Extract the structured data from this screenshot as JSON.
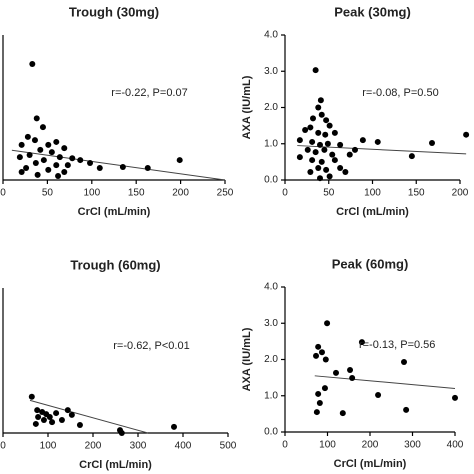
{
  "chart_data": [
    {
      "type": "scatter",
      "title": "Trough (30mg)",
      "x_label": "CrCl (mL/min)",
      "annotation": "r=-0.22, P=0.07",
      "color": "#000000",
      "x": [
        33,
        38,
        45,
        28,
        21,
        36,
        51,
        60,
        69,
        42,
        55,
        30,
        19,
        64,
        78,
        87,
        46,
        37,
        60,
        73,
        98,
        26,
        51,
        69,
        109,
        135,
        163,
        199,
        39,
        62,
        21
      ],
      "values": [
        3.2,
        1.7,
        1.46,
        1.19,
        0.97,
        1.1,
        0.97,
        1.05,
        0.88,
        0.83,
        0.77,
        0.69,
        0.63,
        0.63,
        0.6,
        0.55,
        0.55,
        0.47,
        0.41,
        0.41,
        0.47,
        0.33,
        0.28,
        0.22,
        0.33,
        0.36,
        0.33,
        0.55,
        0.14,
        0.11,
        0.22
      ],
      "fit": {
        "x": [
          10,
          250
        ],
        "y": [
          0.82,
          0.0
        ]
      },
      "xlim": [
        0,
        250
      ],
      "ylim": [
        0,
        4
      ],
      "xticks": [
        0,
        50,
        100,
        150,
        200,
        250
      ]
    },
    {
      "type": "scatter",
      "title": "Peak (30mg)",
      "x_label": "CrCl (mL/min)",
      "y_label": "AXA (IU/mL)",
      "annotation": "r=-0.08, P=0.50",
      "color": "#000000",
      "x": [
        35,
        41,
        38,
        42,
        32,
        47,
        29,
        51,
        23,
        38,
        46,
        57,
        17,
        31,
        40,
        49,
        63,
        26,
        35,
        45,
        54,
        17,
        31,
        42,
        57,
        38,
        47,
        29,
        63,
        51,
        69,
        40,
        74,
        89,
        106,
        80,
        145,
        168,
        207
      ],
      "values": [
        3.03,
        2.2,
        2.0,
        1.8,
        1.7,
        1.65,
        1.45,
        1.5,
        1.38,
        1.3,
        1.25,
        1.3,
        1.1,
        1.05,
        0.97,
        1.0,
        0.97,
        0.83,
        0.77,
        0.83,
        0.7,
        0.63,
        0.55,
        0.5,
        0.55,
        0.33,
        0.28,
        0.22,
        0.33,
        0.1,
        0.22,
        0.05,
        0.7,
        1.1,
        1.05,
        0.83,
        0.66,
        1.02,
        1.25
      ],
      "fit": {
        "x": [
          14,
          207
        ],
        "y": [
          0.95,
          0.72
        ]
      },
      "xlim": [
        0,
        200
      ],
      "ylim": [
        0,
        4
      ],
      "xticks": [
        0,
        50,
        100,
        150,
        200
      ],
      "yticks": [
        {
          "value": 0,
          "label": "0.0"
        },
        {
          "value": 1,
          "label": "1.0"
        },
        {
          "value": 2,
          "label": "2.0"
        },
        {
          "value": 3,
          "label": "3.0"
        },
        {
          "value": 4,
          "label": "4.0"
        }
      ]
    },
    {
      "type": "scatter",
      "title": "Trough (60mg)",
      "x_label": "CrCl (mL/min)",
      "annotation": "r=-0.62, P<0.01",
      "color": "#000000",
      "x": [
        64,
        76,
        87,
        96,
        78,
        104,
        118,
        144,
        153,
        131,
        91,
        109,
        73,
        171,
        260,
        264,
        380
      ],
      "values": [
        1.0,
        0.63,
        0.58,
        0.52,
        0.44,
        0.44,
        0.55,
        0.63,
        0.5,
        0.36,
        0.36,
        0.3,
        0.25,
        0.22,
        0.08,
        0.0,
        0.17
      ],
      "fit": {
        "x": [
          60,
          322
        ],
        "y": [
          0.9,
          0.0
        ]
      },
      "xlim": [
        0,
        500
      ],
      "ylim": [
        0,
        4
      ],
      "xticks": [
        0,
        100,
        200,
        300,
        400,
        500
      ]
    },
    {
      "type": "scatter",
      "title": "Peak (60mg)",
      "x_label": "CrCl (mL/min)",
      "y_label": "AXA (IU/mL)",
      "annotation": "r=-0.13, P=0.56",
      "color": "#000000",
      "x": [
        99,
        78,
        87,
        73,
        96,
        181,
        280,
        153,
        158,
        120,
        219,
        94,
        78,
        82,
        75,
        136,
        285,
        400
      ],
      "values": [
        3.0,
        2.35,
        2.2,
        2.1,
        2.0,
        2.48,
        1.93,
        1.71,
        1.49,
        1.63,
        1.02,
        1.21,
        1.05,
        0.8,
        0.55,
        0.52,
        0.61,
        0.94
      ],
      "fit": {
        "x": [
          70,
          400
        ],
        "y": [
          1.55,
          1.2
        ]
      },
      "xlim": [
        0,
        400
      ],
      "ylim": [
        0,
        4
      ],
      "xticks": [
        0,
        100,
        200,
        300,
        400
      ],
      "yticks": [
        {
          "value": 0,
          "label": "0.0"
        },
        {
          "value": 1,
          "label": "1.0"
        },
        {
          "value": 2,
          "label": "2.0"
        },
        {
          "value": 3,
          "label": "3.0"
        },
        {
          "value": 4,
          "label": "4.0"
        }
      ]
    }
  ]
}
